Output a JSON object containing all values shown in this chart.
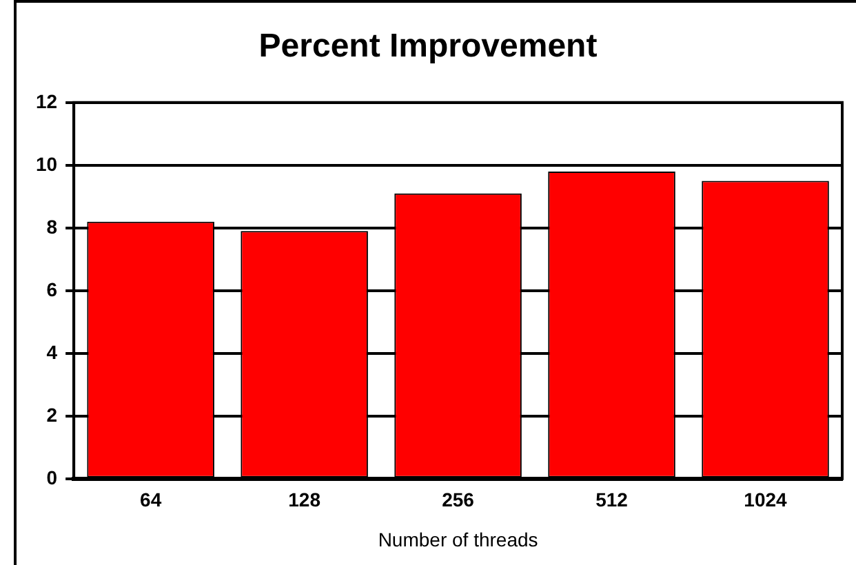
{
  "chart_data": {
    "type": "bar",
    "title": "Percent Improvement",
    "xlabel": "Number of threads",
    "categories": [
      "64",
      "128",
      "256",
      "512",
      "1024"
    ],
    "values": [
      8.2,
      7.9,
      9.1,
      9.8,
      9.5
    ],
    "color": "#ff0000",
    "ylim": [
      0,
      12
    ],
    "yticks": [
      0,
      2,
      4,
      6,
      8,
      10,
      12
    ],
    "grid": "y"
  }
}
